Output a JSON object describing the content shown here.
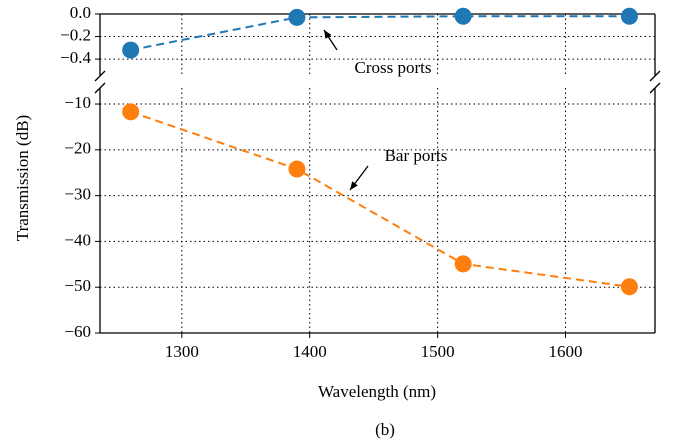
{
  "chart_data": [
    {
      "type": "line",
      "x": [
        1260,
        1390,
        1520,
        1650
      ],
      "series": [
        {
          "name": "Cross ports",
          "color": "#1f77b4",
          "values": [
            -0.32,
            -0.03,
            -0.02,
            -0.02
          ]
        }
      ],
      "ylim": [
        -0.55,
        0.0
      ],
      "yticks": [
        {
          "value": 0.0,
          "label": "0.0"
        },
        {
          "value": -0.2,
          "label": "−0.2"
        },
        {
          "value": -0.4,
          "label": "−0.4"
        }
      ],
      "grid": true
    },
    {
      "type": "line",
      "x": [
        1260,
        1390,
        1520,
        1650
      ],
      "series": [
        {
          "name": "Bar ports",
          "color": "#ff7f0e",
          "values": [
            -11.7,
            -24.2,
            -44.9,
            -49.9
          ]
        }
      ],
      "xlim": [
        1236,
        1670
      ],
      "xticks": [
        1300,
        1400,
        1500,
        1600
      ],
      "ylim": [
        -60,
        -6.5
      ],
      "yticks": [
        {
          "value": -10,
          "label": "−10"
        },
        {
          "value": -20,
          "label": "−20"
        },
        {
          "value": -30,
          "label": "−30"
        },
        {
          "value": -40,
          "label": "−40"
        },
        {
          "value": -50,
          "label": "−50"
        },
        {
          "value": -60,
          "label": "−60"
        }
      ],
      "grid": true,
      "xlabel": "Wavelength (nm)",
      "ylabel": "Transmission (dB)"
    }
  ],
  "caption": "(b)"
}
